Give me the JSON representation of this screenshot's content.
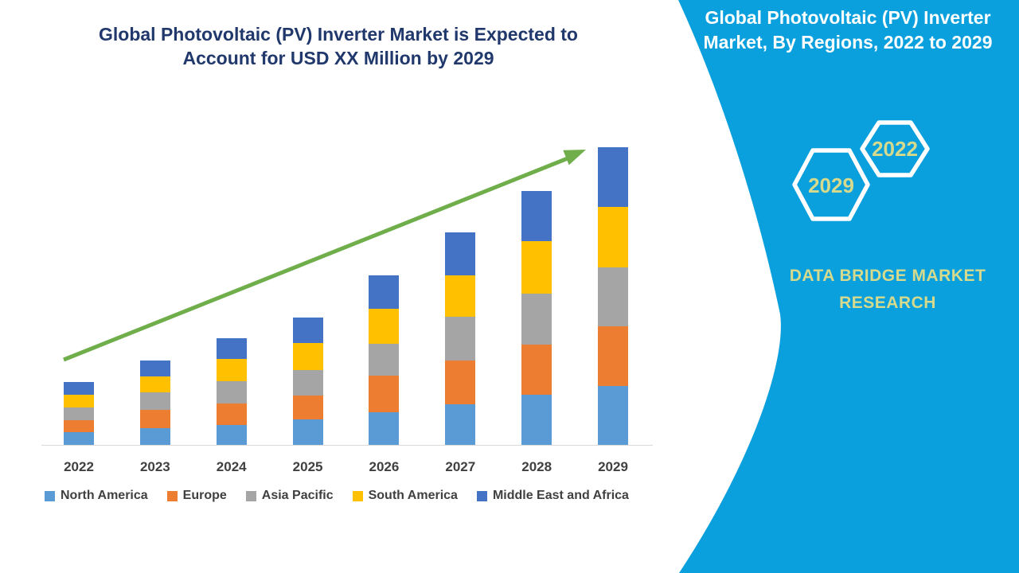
{
  "main": {
    "title_line1": "Global Photovoltaic (PV) Inverter Market is Expected to",
    "title_line2": "Account for USD XX Million by 2029"
  },
  "panel": {
    "title_line1": "Global Photovoltaic (PV) Inverter",
    "title_line2": "Market, By Regions, 2022 to 2029",
    "hexagons": [
      {
        "label": "2029"
      },
      {
        "label": "2022"
      }
    ],
    "brand_line1": "DATA BRIDGE MARKET",
    "brand_line2": "RESEARCH",
    "background_color": "#0AA0DE",
    "accent_text_color": "#D6DA8C"
  },
  "chart_data": {
    "type": "bar",
    "stacked": true,
    "title": "Global Photovoltaic (PV) Inverter Market is Expected to Account for USD XX Million by 2029",
    "xlabel": "",
    "ylabel": "",
    "units": "USD Million (chart labels values as XX; series values are relative estimates read from bar heights)",
    "legend_position": "bottom",
    "gridlines": false,
    "y_axis_shown": false,
    "categories": [
      "2022",
      "2023",
      "2024",
      "2025",
      "2026",
      "2027",
      "2028",
      "2029"
    ],
    "series": [
      {
        "name": "North America",
        "color": "#5B9BD5",
        "values": [
          16,
          21,
          25,
          32,
          41,
          51,
          63,
          74
        ]
      },
      {
        "name": "Europe",
        "color": "#ED7D31",
        "values": [
          15,
          23,
          27,
          30,
          46,
          55,
          63,
          75
        ]
      },
      {
        "name": "Asia Pacific",
        "color": "#A5A5A5",
        "values": [
          16,
          22,
          28,
          32,
          40,
          55,
          64,
          74
        ]
      },
      {
        "name": "South America",
        "color": "#FFC000",
        "values": [
          16,
          20,
          28,
          34,
          44,
          52,
          66,
          76
        ]
      },
      {
        "name": "Middle East and Africa",
        "color": "#4472C4",
        "values": [
          16,
          20,
          26,
          32,
          42,
          54,
          63,
          75
        ]
      }
    ],
    "totals": [
      79,
      106,
      134,
      160,
      213,
      267,
      319,
      374
    ],
    "annotations": [
      "green upward trend arrow spanning 2022 to 2029"
    ]
  },
  "colors": {
    "title_text": "#20386B",
    "axis_text": "#404040",
    "axis_line": "#D9D9D9",
    "arrow_green": "#6FAE4B"
  }
}
